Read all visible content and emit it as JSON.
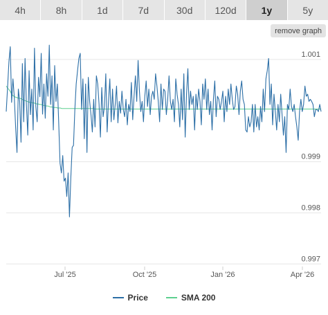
{
  "range_tabs": [
    {
      "label": "4h",
      "active": false
    },
    {
      "label": "8h",
      "active": false
    },
    {
      "label": "1d",
      "active": false
    },
    {
      "label": "7d",
      "active": false
    },
    {
      "label": "30d",
      "active": false
    },
    {
      "label": "120d",
      "active": false
    },
    {
      "label": "1y",
      "active": true
    },
    {
      "label": "5y",
      "active": false
    }
  ],
  "remove_graph_label": "remove graph",
  "colors": {
    "price": "#2b6ea6",
    "sma": "#5ccf8f",
    "grid": "#e6e6e6",
    "tab_bg": "#e5e5e5",
    "tab_active_bg": "#cfcfcf"
  },
  "chart_data": {
    "type": "line",
    "title": "",
    "xlabel": "",
    "ylabel": "",
    "x_ticks": [
      "Jul '25",
      "Oct '25",
      "Jan '26",
      "Apr '26"
    ],
    "y_ticks": [
      "1.001",
      "0.999",
      "0.998",
      "0.997"
    ],
    "ylim": [
      0.99695,
      1.00135
    ],
    "grid": "horizontal",
    "legend_position": "bottom",
    "series": [
      {
        "name": "Price",
        "values": [
          0.99998,
          1.00045,
          1.00095,
          1.00125,
          1.00016,
          1.00062,
          1.00026,
          0.99967,
          0.99918,
          1.00042,
          1.00018,
          0.99938,
          1.00092,
          0.99978,
          1.00102,
          1.00012,
          0.99952,
          1.00078,
          0.99992,
          1.00042,
          0.99962,
          1.00122,
          1.00008,
          0.99978,
          1.00065,
          1.00027,
          1.00112,
          0.99993,
          1.00052,
          0.99985,
          1.00072,
          1.00028,
          1.00128,
          1.00012,
          1.00068,
          0.99962,
          1.00088,
          1.00018,
          1.00052,
          0.99977,
          0.99897,
          0.99878,
          0.99912,
          0.99862,
          0.99868,
          0.99832,
          0.99878,
          0.99792,
          0.99868,
          0.99928,
          0.99932,
          1.00002,
          1.00052,
          1.00078,
          1.00102,
          1.00112,
          1.00002,
          1.00062,
          0.99945,
          1.00052,
          0.99918,
          1.00065,
          1.00018,
          0.99992,
          0.99958,
          1.00022,
          0.99968,
          1.00068,
          1.00052,
          1.00012,
          0.99948,
          1.00045,
          0.99988,
          1.00008,
          1.00072,
          0.99958,
          1.00018,
          1.00062,
          0.99978,
          1.00042,
          0.99982,
          1.00012,
          1.00048,
          0.99976,
          1.00018,
          0.99995,
          1.00038,
          1.00002,
          0.99988,
          1.00022,
          0.99972,
          1.00012,
          0.99998,
          1.00055,
          0.99982,
          1.00028,
          1.00068,
          1.00018,
          1.00098,
          1.00038,
          0.99998,
          1.00018,
          0.99978,
          1.00028,
          1.00058,
          1.00008,
          1.00042,
          0.99992,
          1.00028,
          1.00038,
          1.00022,
          1.00072,
          1.00048,
          1.00018,
          0.99978,
          1.00052,
          1.00002,
          1.00042,
          1.00038,
          0.99992,
          1.00022,
          1.00068,
          1.00018,
          1.00002,
          1.00022,
          0.99978,
          1.00062,
          1.00032,
          1.00012,
          0.99968,
          1.00042,
          0.99982,
          1.00072,
          0.99948,
          1.00032,
          1.00082,
          1.00002,
          1.00038,
          1.00012,
          1.00028,
          0.99962,
          1.00032,
          1.00002,
          1.00042,
          1.00018,
          0.99972,
          1.00052,
          1.00022,
          1.00062,
          1.00002,
          1.00042,
          0.99992,
          1.00018,
          0.99962,
          1.00022,
          1.00058,
          0.99988,
          1.00028,
          1.00022,
          1.00002,
          1.00018,
          1.00038,
          0.99978,
          1.00028,
          0.99998,
          1.00042,
          1.00012,
          1.00052,
          1.00022,
          1.00002,
          1.00008,
          1.00048,
          1.00032,
          0.99992,
          1.00038,
          1.00058,
          1.00022,
          1.00012,
          0.99962,
          0.99958,
          0.99988,
          0.99968,
          0.99978,
          1.00012,
          0.99958,
          1.00012,
          0.99968,
          0.99988,
          0.99962,
          1.00008,
          0.99978,
          1.00042,
          0.99998,
          1.00062,
          1.00078,
          1.00102,
          1.00012,
          1.00052,
          0.99972,
          1.00032,
          0.99998,
          0.99962,
          1.00012,
          0.99978,
          1.00032,
          0.99992,
          0.99952,
          0.99988,
          0.99918,
          1.00012,
          1.00002,
          1.00042,
          1.00008,
          0.99998,
          1.00012,
          0.99988,
          0.99968,
          0.99942,
          0.99998,
          1.00022,
          0.99998,
          1.00012,
          1.00048,
          1.00028,
          1.00032,
          1.00018,
          1.00022,
          1.00018,
          1.00012,
          0.99988,
          1.00002,
          1.00002,
          0.99998,
          1.00012,
          0.99998
        ]
      },
      {
        "name": "SMA 200",
        "values": [
          1.00048,
          1.00044,
          1.00041,
          1.00037,
          1.00032,
          1.00029,
          1.00027,
          1.00026,
          1.00025,
          1.00024,
          1.00024,
          1.00023,
          1.00021,
          1.0002,
          1.00019,
          1.00018,
          1.00017,
          1.00016,
          1.00016,
          1.00015,
          1.00015,
          1.00014,
          1.00013,
          1.00013,
          1.00012,
          1.00012,
          1.00011,
          1.0001,
          1.0001,
          1.00009,
          1.00009,
          1.00008,
          1.00007,
          1.00007,
          1.00006,
          1.00006,
          1.00006,
          1.00005,
          1.00005,
          1.00005,
          1.00004,
          1.00004,
          1.00004,
          1.00004,
          1.00004,
          1.00004,
          1.00004,
          1.00004,
          1.00004,
          1.00004,
          1.00004,
          1.00004,
          1.00004,
          1.00004,
          1.00004,
          1.00004,
          1.00004,
          1.00004,
          1.00004,
          1.00004,
          1.00004,
          1.00004,
          1.00004,
          1.00004,
          1.00003,
          1.00003,
          1.00003,
          1.00003,
          1.00003,
          1.00003,
          1.00003,
          1.00003,
          1.00003,
          1.00003,
          1.00003,
          1.00003,
          1.00003,
          1.00003,
          1.00003,
          1.00003,
          1.00003,
          1.00003,
          1.00003,
          1.00003,
          1.00003,
          1.00003,
          1.00003,
          1.00003,
          1.00003,
          1.00003,
          1.00003,
          1.00003,
          1.00003,
          1.00003,
          1.00003,
          1.00003,
          1.00003,
          1.00003,
          1.00003,
          1.00003,
          1.00003,
          1.00003,
          1.00003,
          1.00003,
          1.00003,
          1.00003,
          1.00003,
          1.00003,
          1.00003,
          1.00003,
          1.00003,
          1.00003,
          1.00003,
          1.00003,
          1.00003,
          1.00003,
          1.00003,
          1.00003,
          1.00003,
          1.00003,
          1.00003,
          1.00003,
          1.00003,
          1.00003,
          1.00003,
          1.00003,
          1.00003,
          1.00003,
          1.00003,
          1.00003,
          1.00003,
          1.00003,
          1.00003,
          1.00003,
          1.00003,
          1.00003,
          1.00003,
          1.00003,
          1.00003,
          1.00003,
          1.00003,
          1.00003,
          1.00003,
          1.00003,
          1.00003,
          1.00003,
          1.00003,
          1.00003,
          1.00003,
          1.00003,
          1.00003,
          1.00003,
          1.00003,
          1.00003,
          1.00003,
          1.00003,
          1.00003,
          1.00003,
          1.00003,
          1.00003,
          1.00003,
          1.00003,
          1.00003,
          1.00003,
          1.00003,
          1.00003,
          1.00003,
          1.00003,
          1.00003,
          1.00003,
          1.00003,
          1.00003,
          1.00003,
          1.00003,
          1.00003,
          1.00003,
          1.00003,
          1.00003,
          1.00003,
          1.00003,
          1.00003,
          1.00003,
          1.00003,
          1.00003,
          1.00003,
          1.00003,
          1.00003,
          1.00003,
          1.00003,
          1.00003,
          1.00003,
          1.00003,
          1.00003,
          1.00003,
          1.00003,
          1.00003,
          1.00003,
          1.00003,
          1.00003,
          1.00003,
          1.00003,
          1.00003,
          1.00003,
          1.00003,
          1.00003,
          1.00003,
          1.00003,
          1.00003,
          1.00003,
          1.00003,
          1.00003,
          1.00003,
          1.00003,
          1.00003,
          1.00003,
          1.00003,
          1.00003,
          1.00003,
          1.00003,
          1.00003,
          1.00003,
          1.00003,
          1.00003,
          1.00003,
          1.00003,
          1.00003,
          1.00003,
          1.00003
        ]
      }
    ]
  }
}
